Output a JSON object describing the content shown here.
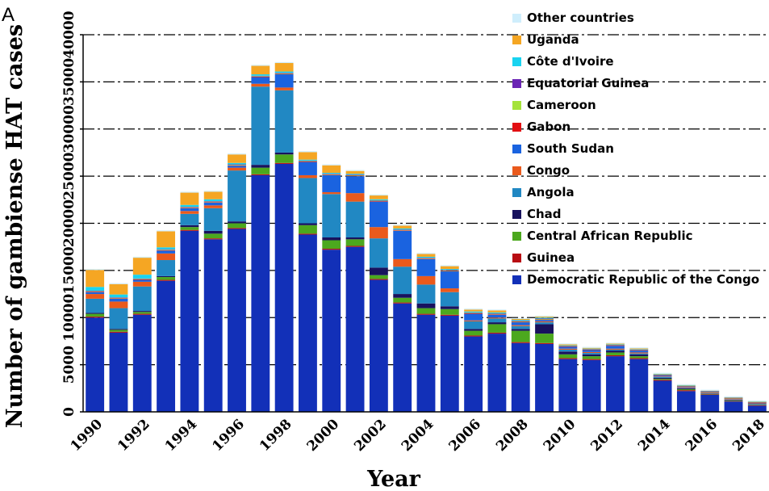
{
  "panel_label": "A",
  "chart_data": {
    "type": "bar",
    "stacked": true,
    "xlabel": "Year",
    "ylabel": "Number of gambiense HAT cases",
    "ylim": [
      0,
      40000
    ],
    "y_ticks": [
      0,
      5000,
      10000,
      15000,
      20000,
      25000,
      30000,
      35000,
      40000
    ],
    "x_tick_labels": [
      "1990",
      "1992",
      "1994",
      "1996",
      "1998",
      "2000",
      "2002",
      "2004",
      "2006",
      "2008",
      "2010",
      "2012",
      "2014",
      "2016",
      "2018"
    ],
    "legend_position": "top-right",
    "grid": "horizontal dash-dot lines",
    "categories": [
      "1990",
      "1991",
      "1992",
      "1993",
      "1994",
      "1995",
      "1996",
      "1997",
      "1998",
      "1999",
      "2000",
      "2001",
      "2002",
      "2003",
      "2004",
      "2005",
      "2006",
      "2007",
      "2008",
      "2009",
      "2010",
      "2011",
      "2012",
      "2013",
      "2014",
      "2015",
      "2016",
      "2017",
      "2018"
    ],
    "series": [
      {
        "name": "Democratic Republic of the Congo",
        "color": "#1230b8",
        "values": [
          10000,
          8400,
          10300,
          13900,
          19200,
          18300,
          19400,
          25100,
          26300,
          18800,
          17200,
          17500,
          14000,
          11500,
          10300,
          10200,
          8000,
          8300,
          7300,
          7200,
          5600,
          5500,
          5900,
          5600,
          3300,
          2200,
          1800,
          1100,
          650
        ]
      },
      {
        "name": "Guinea",
        "color": "#b80d12",
        "values": [
          100,
          100,
          100,
          100,
          100,
          100,
          100,
          100,
          100,
          100,
          100,
          100,
          100,
          100,
          100,
          100,
          100,
          100,
          100,
          100,
          100,
          100,
          100,
          100,
          100,
          100,
          50,
          50,
          50
        ]
      },
      {
        "name": "Central African Republic",
        "color": "#4ca81e",
        "values": [
          300,
          200,
          200,
          300,
          300,
          500,
          500,
          700,
          900,
          900,
          900,
          700,
          400,
          500,
          600,
          600,
          500,
          900,
          1200,
          1000,
          400,
          300,
          300,
          200,
          100,
          100,
          50,
          50,
          50
        ]
      },
      {
        "name": "Chad",
        "color": "#18125e",
        "values": [
          100,
          100,
          100,
          100,
          200,
          300,
          200,
          300,
          200,
          200,
          300,
          200,
          800,
          400,
          500,
          300,
          200,
          200,
          200,
          1000,
          300,
          200,
          200,
          200,
          100,
          100,
          50,
          50,
          50
        ]
      },
      {
        "name": "Angola",
        "color": "#2188c3",
        "values": [
          1500,
          2200,
          2600,
          1700,
          1200,
          2400,
          5400,
          8300,
          6600,
          4800,
          4600,
          3800,
          3100,
          2900,
          2000,
          1500,
          800,
          400,
          300,
          200,
          200,
          150,
          100,
          100,
          100,
          50,
          50,
          50,
          50
        ]
      },
      {
        "name": "Congo",
        "color": "#ea5a1c",
        "values": [
          500,
          700,
          500,
          700,
          300,
          300,
          300,
          300,
          300,
          300,
          200,
          900,
          1200,
          800,
          900,
          400,
          100,
          100,
          100,
          100,
          100,
          100,
          100,
          100,
          50,
          50,
          50,
          50,
          50
        ]
      },
      {
        "name": "South Sudan",
        "color": "#1a63e0",
        "values": [
          200,
          300,
          200,
          300,
          300,
          300,
          200,
          700,
          1400,
          1400,
          1800,
          1800,
          2700,
          3000,
          1800,
          1800,
          700,
          300,
          300,
          150,
          200,
          200,
          300,
          200,
          100,
          50,
          50,
          50,
          50
        ]
      },
      {
        "name": "Gabon",
        "color": "#e20f12",
        "values": [
          50,
          50,
          50,
          50,
          50,
          50,
          50,
          50,
          50,
          50,
          50,
          50,
          50,
          50,
          50,
          50,
          50,
          50,
          50,
          50,
          50,
          50,
          50,
          50,
          30,
          30,
          30,
          30,
          30
        ]
      },
      {
        "name": "Cameroon",
        "color": "#a5e33a",
        "values": [
          50,
          50,
          50,
          50,
          50,
          50,
          50,
          50,
          50,
          50,
          50,
          50,
          50,
          50,
          50,
          50,
          50,
          50,
          50,
          50,
          30,
          30,
          30,
          30,
          30,
          30,
          30,
          30,
          30
        ]
      },
      {
        "name": "Equatorial Guinea",
        "color": "#6b25b5",
        "values": [
          50,
          50,
          50,
          50,
          50,
          50,
          50,
          50,
          50,
          50,
          50,
          50,
          50,
          50,
          50,
          50,
          50,
          50,
          50,
          50,
          30,
          30,
          30,
          30,
          30,
          30,
          30,
          30,
          30
        ]
      },
      {
        "name": "Côte d'Ivoire",
        "color": "#19d3f0",
        "values": [
          400,
          300,
          400,
          200,
          200,
          200,
          150,
          150,
          150,
          100,
          100,
          100,
          100,
          100,
          100,
          100,
          100,
          100,
          100,
          100,
          50,
          50,
          50,
          50,
          50,
          50,
          30,
          30,
          30
        ]
      },
      {
        "name": "Uganda",
        "color": "#f5a623",
        "values": [
          1800,
          1100,
          1800,
          1700,
          1300,
          800,
          900,
          900,
          900,
          800,
          800,
          300,
          400,
          300,
          300,
          300,
          200,
          200,
          100,
          100,
          100,
          80,
          80,
          80,
          50,
          50,
          30,
          30,
          30
        ]
      },
      {
        "name": "Other countries",
        "color": "#cfeefc",
        "values": [
          100,
          100,
          100,
          100,
          100,
          100,
          100,
          100,
          100,
          100,
          100,
          100,
          100,
          100,
          100,
          100,
          100,
          100,
          100,
          100,
          100,
          100,
          100,
          100,
          100,
          100,
          100,
          100,
          100
        ]
      }
    ]
  }
}
